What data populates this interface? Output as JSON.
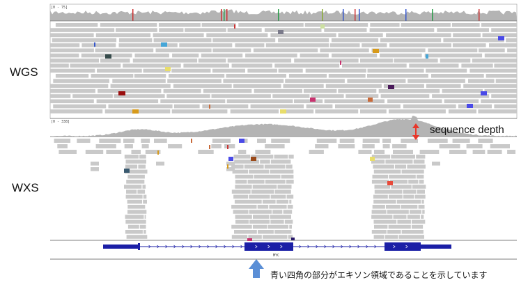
{
  "wgs": {
    "label": "WGS",
    "coverage_range": "[0 - 75]"
  },
  "wxs": {
    "label": "WXS",
    "coverage_range": "[0 - 338]"
  },
  "annotation": {
    "depth_label": "sequence depth",
    "arrow_color": "#e8372a"
  },
  "gene": {
    "name": "MYC",
    "color": "#1b1fa6"
  },
  "caption": {
    "text": "青い四角の部分がエキソン領域であることを示しています",
    "arrow_color": "#5b8fd6"
  },
  "colors": {
    "read": "#c9c9c9",
    "coverage": "#b4b4b4",
    "frame": "#6a6a6a"
  }
}
